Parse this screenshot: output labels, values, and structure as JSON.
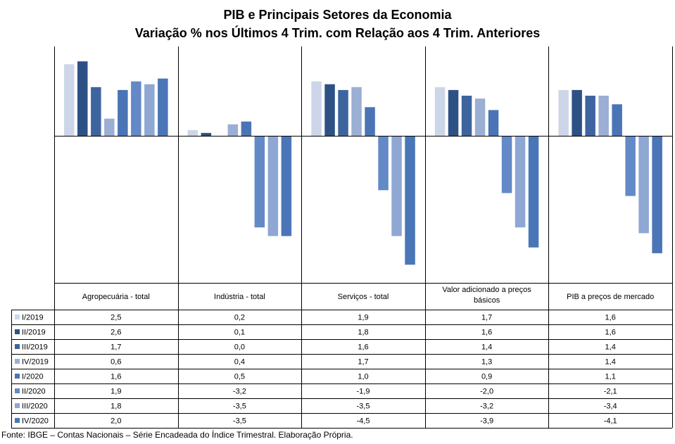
{
  "title": "PIB e Principais  Setores da Economia",
  "subtitle": "Variação  % nos  Últimos 4 Trim.  com Relação aos  4 Trim.  Anteriores",
  "source": "Fonte: IBGE – Contas Nacionais – Série Encadeada do Índice Trimestral. Elaboração Própria.",
  "colors": [
    "#cdd6e8",
    "#2e5185",
    "#3e64a0",
    "#9aafd3",
    "#4a74b5",
    "#6389c7",
    "#8ea7d3",
    "#4a76b8"
  ],
  "chart_data": {
    "type": "bar",
    "categories": [
      "Agropecuária - total",
      "Indústria - total",
      "Serviços - total",
      "Valor adicionado a preços básicos",
      "PIB a preços de mercado"
    ],
    "series": [
      {
        "name": "I/2019",
        "values": [
          2.5,
          0.2,
          1.9,
          1.7,
          1.6
        ]
      },
      {
        "name": "II/2019",
        "values": [
          2.6,
          0.1,
          1.8,
          1.6,
          1.6
        ]
      },
      {
        "name": "III/2019",
        "values": [
          1.7,
          0.0,
          1.6,
          1.4,
          1.4
        ]
      },
      {
        "name": "IV/2019",
        "values": [
          0.6,
          0.4,
          1.7,
          1.3,
          1.4
        ]
      },
      {
        "name": "I/2020",
        "values": [
          1.6,
          0.5,
          1.0,
          0.9,
          1.1
        ]
      },
      {
        "name": "II/2020",
        "values": [
          1.9,
          -3.2,
          -1.9,
          -2.0,
          -2.1
        ]
      },
      {
        "name": "III/2020",
        "values": [
          1.8,
          -3.5,
          -3.5,
          -3.2,
          -3.4
        ]
      },
      {
        "name": "IV/2020",
        "values": [
          2.0,
          -3.5,
          -4.5,
          -3.9,
          -4.1
        ]
      }
    ],
    "display_values": [
      [
        "2,5",
        "0,2",
        "1,9",
        "1,7",
        "1,6"
      ],
      [
        "2,6",
        "0,1",
        "1,8",
        "1,6",
        "1,6"
      ],
      [
        "1,7",
        "0,0",
        "1,6",
        "1,4",
        "1,4"
      ],
      [
        "0,6",
        "0,4",
        "1,7",
        "1,3",
        "1,4"
      ],
      [
        "1,6",
        "0,5",
        "1,0",
        "0,9",
        "1,1"
      ],
      [
        "1,9",
        "-3,2",
        "-1,9",
        "-2,0",
        "-2,1"
      ],
      [
        "1,8",
        "-3,5",
        "-3,5",
        "-3,2",
        "-3,4"
      ],
      [
        "2,0",
        "-3,5",
        "-4,5",
        "-3,9",
        "-4,1"
      ]
    ],
    "ylim": [
      -4.9,
      3.1
    ],
    "legend": "data table below chart",
    "grid": false
  }
}
